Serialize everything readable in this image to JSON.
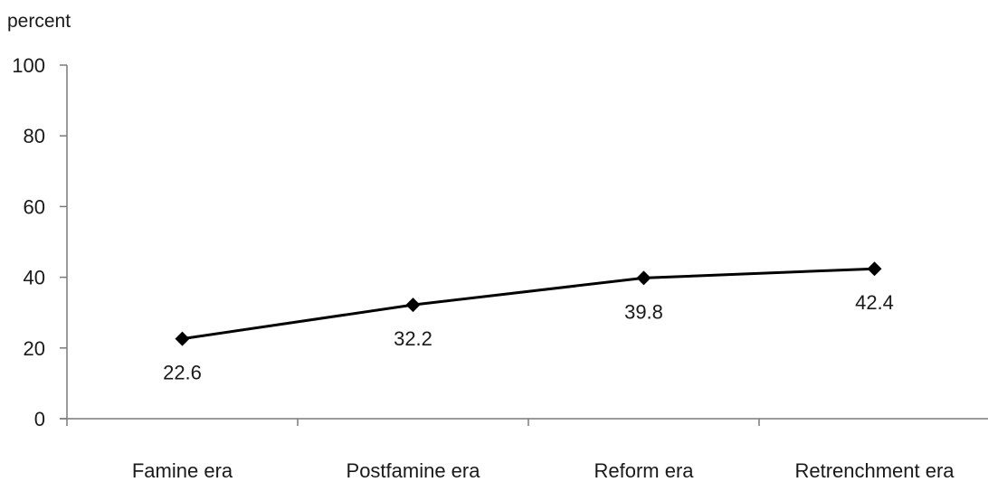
{
  "chart_data": {
    "type": "line",
    "title": "",
    "xlabel": "",
    "ylabel": "percent",
    "categories": [
      "Famine era",
      "Postfamine era",
      "Reform era",
      "Retrenchment era"
    ],
    "series": [
      {
        "values": [
          22.6,
          32.2,
          39.8,
          42.4
        ],
        "data_labels": [
          "22.6",
          "32.2",
          "39.8",
          "42.4"
        ],
        "color": "#000000",
        "marker": "diamond"
      }
    ],
    "ylim": [
      0,
      100
    ],
    "yticks": [
      0,
      20,
      40,
      60,
      80,
      100
    ],
    "ytick_labels": [
      "0",
      "20",
      "40",
      "60",
      "80",
      "100"
    ],
    "grid": false,
    "legend": "none"
  }
}
